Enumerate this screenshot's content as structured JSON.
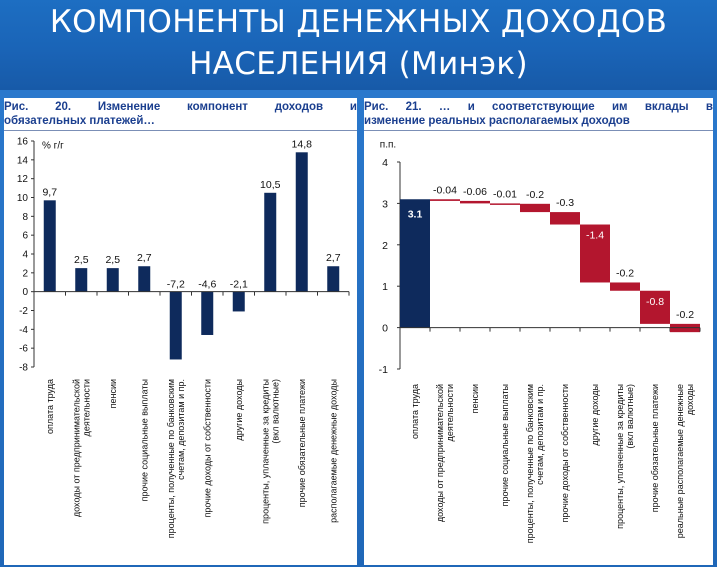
{
  "header": {
    "title_line1": "КОМПОНЕНТЫ ДЕНЕЖНЫХ ДОХОДОВ",
    "title_line2": "НАСЕЛЕНИЯ (Минэк)"
  },
  "colors": {
    "banner": "#1a64b7",
    "navy_bar": "#0e2a5c",
    "red_bar": "#b3162e",
    "title_text": "#1b3f8f"
  },
  "left_panel": {
    "title_line1": "Рис. 20. Изменение компонент доходов и",
    "title_line2": "обязательных платежей…"
  },
  "right_panel": {
    "title_line1": "Рис. 21. … и соответствующие им вклады в",
    "title_line2": "изменение реальных располагаемых доходов"
  },
  "chart_data": [
    {
      "type": "bar",
      "unit_label": "% г/г",
      "categories": [
        "оплата труда",
        "доходы от предпринимательской деятельности",
        "пенсии",
        "прочие социальные выплаты",
        "проценты, полученные по банковским счетам, депозитам и пр.",
        "прочие доходы от собственности",
        "другие доходы",
        "проценты, уплаченные за кредиты (вкл валютные)",
        "прочие обязательные платежи",
        "располагаемые денежные доходы"
      ],
      "values": [
        9.7,
        2.5,
        2.5,
        2.7,
        -7.2,
        -4.6,
        -2.1,
        10.5,
        14.8,
        2.7
      ],
      "value_labels": [
        "9,7",
        "2,5",
        "2,5",
        "2,7",
        "-7,2",
        "-4,6",
        "-2,1",
        "10,5",
        "14,8",
        "2,7"
      ],
      "ylim": [
        -8,
        16
      ],
      "yticks": [
        -8,
        -6,
        -4,
        -2,
        0,
        2,
        4,
        6,
        8,
        10,
        12,
        14,
        16
      ],
      "bar_color": "#0e2a5c"
    },
    {
      "type": "waterfall",
      "unit_label": "п.п.",
      "categories": [
        "оплата труда",
        "доходы от предпринимательской деятельности",
        "пенсии",
        "прочие социальные выплаты",
        "проценты, полученные по банковским счетам, депозитам и пр.",
        "прочие доходы от собственности",
        "другие доходы",
        "проценты, уплаченные за кредиты (вкл валютные)",
        "прочие обязательные платежи",
        "реальные располагаемые денежные доходы"
      ],
      "values": [
        3.1,
        -0.04,
        -0.06,
        -0.01,
        -0.2,
        -0.3,
        -1.4,
        -0.2,
        -0.8,
        -0.2
      ],
      "value_labels": [
        "3.1",
        "-0.04",
        "-0.06",
        "-0.01",
        "-0.2",
        "-0.3",
        "-1.4",
        "-0.2",
        "-0.8",
        "-0.2"
      ],
      "ylim": [
        -1,
        4
      ],
      "yticks": [
        -1,
        0,
        1,
        2,
        3,
        4
      ],
      "positive_color": "#0e2a5c",
      "negative_color": "#b3162e"
    }
  ]
}
